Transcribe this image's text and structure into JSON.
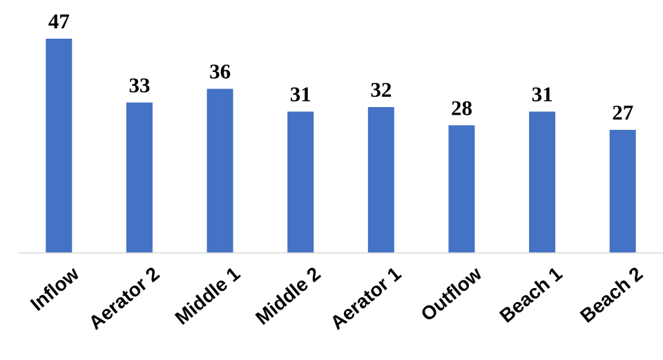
{
  "chart_data": {
    "type": "bar",
    "categories": [
      "Inflow",
      "Aerator 2",
      "Middle 1",
      "Middle 2",
      "Aerator 1",
      "Outflow",
      "Beach 1",
      "Beach 2"
    ],
    "values": [
      47,
      33,
      36,
      31,
      32,
      28,
      31,
      27
    ],
    "title": "",
    "xlabel": "",
    "ylabel": "",
    "ylim": [
      0,
      47
    ],
    "grid": false,
    "legend": "none",
    "data_labels": true,
    "bar_color": "#4472C4"
  }
}
